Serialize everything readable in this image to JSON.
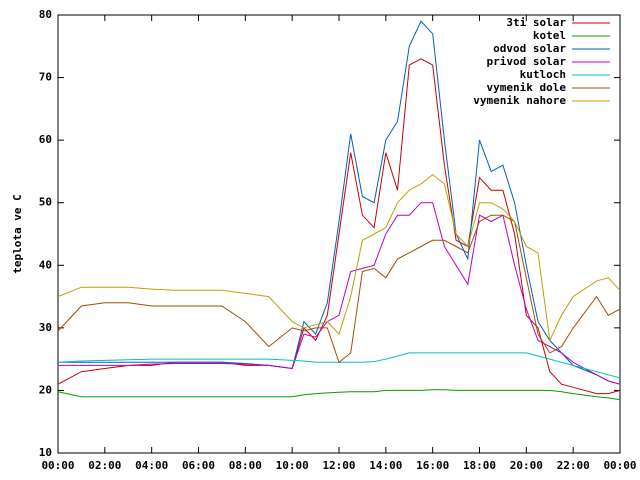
{
  "chart_data": {
    "type": "line",
    "ylabel": "teplota ve C",
    "x": [
      0,
      1,
      2,
      3,
      4,
      5,
      6,
      7,
      8,
      9,
      10,
      10.5,
      11,
      11.5,
      12,
      12.5,
      13,
      13.5,
      14,
      14.5,
      15,
      15.5,
      16,
      16.5,
      17,
      17.5,
      18,
      18.5,
      19,
      19.5,
      20,
      20.5,
      21,
      21.5,
      22,
      23,
      23.5,
      24
    ],
    "series": [
      {
        "name": "3ti solar",
        "color": "#cc0000",
        "values": [
          21,
          23,
          23.5,
          24,
          24,
          24.5,
          24.5,
          24.5,
          24,
          24,
          23.5,
          30,
          28,
          32,
          45,
          58,
          48,
          46,
          58,
          52,
          72,
          73,
          72,
          56,
          44,
          43,
          54,
          52,
          52,
          45,
          32,
          30,
          23,
          21,
          20.5,
          19.5,
          19.5,
          20
        ]
      },
      {
        "name": "kotel",
        "color": "#00a000",
        "values": [
          19.8,
          19,
          19,
          19,
          19,
          19,
          19,
          19,
          19,
          19,
          19,
          19.3,
          19.5,
          19.6,
          19.7,
          19.8,
          19.8,
          19.8,
          20,
          20,
          20,
          20,
          20.1,
          20.1,
          20,
          20,
          20,
          20,
          20,
          20,
          20,
          20,
          20,
          19.8,
          19.5,
          19,
          18.8,
          18.5
        ]
      },
      {
        "name": "odvod solar",
        "color": "#0060c0",
        "values": [
          24.5,
          24.5,
          24.5,
          24.5,
          24.5,
          24.5,
          24.5,
          24.5,
          24.3,
          24,
          23.5,
          31,
          29,
          34,
          47,
          61,
          51,
          50,
          60,
          63,
          75,
          79,
          77,
          60,
          45,
          41,
          60,
          55,
          56,
          50,
          40,
          31,
          28,
          26,
          24,
          22.5,
          21.5,
          21
        ]
      },
      {
        "name": "privod solar",
        "color": "#c000c0",
        "values": [
          24,
          24,
          24,
          24,
          24.2,
          24.3,
          24.3,
          24.3,
          24.2,
          24,
          23.5,
          29,
          28.5,
          31,
          32,
          39,
          39.5,
          40,
          45,
          48,
          48,
          50,
          50,
          43,
          40,
          37,
          48,
          47,
          48,
          40,
          33,
          28,
          27,
          26,
          24.5,
          22.5,
          21.5,
          21
        ]
      },
      {
        "name": "kutloch",
        "color": "#00c0c0",
        "values": [
          24.5,
          24.7,
          24.8,
          24.9,
          25,
          25,
          25,
          25,
          25,
          25,
          24.8,
          24.7,
          24.5,
          24.5,
          24.5,
          24.5,
          24.5,
          24.6,
          25,
          25.5,
          26,
          26,
          26,
          26,
          26,
          26,
          26,
          26,
          26,
          26,
          26,
          25.5,
          25,
          24.5,
          24,
          23,
          22.5,
          22
        ]
      },
      {
        "name": "vymenik dole",
        "color": "#a05000",
        "values": [
          29.5,
          33.5,
          34,
          34,
          33.5,
          33.5,
          33.5,
          33.5,
          31,
          27,
          30,
          29.5,
          30,
          30,
          24.5,
          26,
          39,
          39.5,
          38,
          41,
          42,
          43,
          44,
          44,
          43,
          42,
          47,
          48,
          48,
          47,
          38,
          29,
          26,
          27,
          30,
          35,
          32,
          33
        ]
      },
      {
        "name": "vymenik nahore",
        "color": "#c0a000",
        "values": [
          35,
          36.5,
          36.5,
          36.5,
          36.2,
          36,
          36,
          36,
          35.5,
          35,
          31,
          30,
          30.5,
          31,
          29,
          35,
          44,
          45,
          46,
          50,
          52,
          53,
          54.5,
          53,
          45,
          43,
          50,
          50,
          49,
          47,
          43,
          42,
          28,
          32,
          35,
          37.5,
          38,
          36
        ]
      }
    ],
    "xlim": [
      0,
      24
    ],
    "xticks": [
      {
        "value": 0,
        "label": "00:00"
      },
      {
        "value": 2,
        "label": "02:00"
      },
      {
        "value": 4,
        "label": "04:00"
      },
      {
        "value": 6,
        "label": "06:00"
      },
      {
        "value": 8,
        "label": "08:00"
      },
      {
        "value": 10,
        "label": "10:00"
      },
      {
        "value": 12,
        "label": "12:00"
      },
      {
        "value": 14,
        "label": "14:00"
      },
      {
        "value": 16,
        "label": "16:00"
      },
      {
        "value": 18,
        "label": "18:00"
      },
      {
        "value": 20,
        "label": "20:00"
      },
      {
        "value": 22,
        "label": "22:00"
      },
      {
        "value": 24,
        "label": "00:00"
      }
    ],
    "ylim": [
      10,
      80
    ],
    "yticks": [
      10,
      20,
      30,
      40,
      50,
      60,
      70,
      80
    ],
    "legend": "top-right"
  }
}
